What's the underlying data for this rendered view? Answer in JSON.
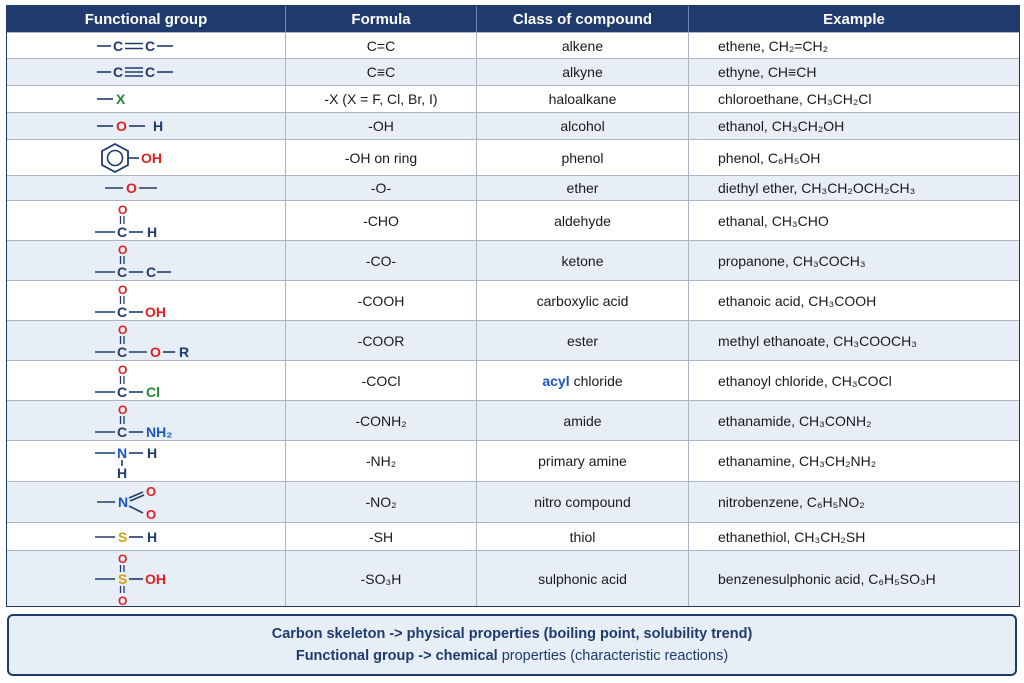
{
  "headers": {
    "group": "Functional group",
    "formula": "Formula",
    "class": "Class of compound",
    "example": "Example"
  },
  "colors": {
    "header_bg": "#1f3b6e",
    "carbon": "#1f3b6e",
    "oxygen": "#e02020",
    "halogen": "#1f8a3a",
    "nitrogen_blue": "#1a56c4",
    "sulfur": "#d4a017"
  },
  "rows": [
    {
      "group_icon": "alkene-structure",
      "atoms": [
        "C",
        "C"
      ],
      "formula": "C=C",
      "class": "alkene",
      "example": "ethene, CH₂=CH₂"
    },
    {
      "group_icon": "alkyne-structure",
      "atoms": [
        "C",
        "C"
      ],
      "formula": "C≡C",
      "class": "alkyne",
      "example": "ethyne, CH≡CH"
    },
    {
      "group_icon": "halide-structure",
      "atoms": [
        "X"
      ],
      "formula": "-X  (X = F, Cl, Br, I)",
      "class": "haloalkane",
      "example": "chloroethane, CH₃CH₂Cl"
    },
    {
      "group_icon": "hydroxyl-structure",
      "atoms": [
        "O",
        "H"
      ],
      "formula": "-OH",
      "class": "alcohol",
      "example": "ethanol, CH₃CH₂OH"
    },
    {
      "group_icon": "phenol-ring-structure",
      "atoms": [
        "OH"
      ],
      "formula": "-OH on ring",
      "class": "phenol",
      "example": "phenol, C₆H₅OH"
    },
    {
      "group_icon": "ether-structure",
      "atoms": [
        "O"
      ],
      "formula": "-O-",
      "class": "ether",
      "example": "diethyl ether, CH₃CH₂OCH₂CH₃"
    },
    {
      "group_icon": "aldehyde-structure",
      "atoms": [
        "O",
        "C",
        "H"
      ],
      "formula": "-CHO",
      "class": "aldehyde",
      "example": "ethanal, CH₃CHO"
    },
    {
      "group_icon": "ketone-structure",
      "atoms": [
        "O",
        "C",
        "C"
      ],
      "formula": "-CO-",
      "class": "ketone",
      "example": "propanone, CH₃COCH₃"
    },
    {
      "group_icon": "carboxyl-structure",
      "atoms": [
        "O",
        "C",
        "OH"
      ],
      "formula": "-COOH",
      "class": "carboxylic acid",
      "example": "ethanoic acid, CH₃COOH"
    },
    {
      "group_icon": "ester-structure",
      "atoms": [
        "O",
        "C",
        "O",
        "R"
      ],
      "formula": "-COOR",
      "class": "ester",
      "example": "methyl ethanoate, CH₃COOCH₃"
    },
    {
      "group_icon": "acyl-chloride-structure",
      "atoms": [
        "O",
        "C",
        "Cl"
      ],
      "formula": "-COCl",
      "class_prefix": "acyl",
      "class": "chloride",
      "example": "ethanoyl chloride, CH₃COCl"
    },
    {
      "group_icon": "amide-structure",
      "atoms": [
        "O",
        "C",
        "NH₂"
      ],
      "formula": "-CONH₂",
      "class": "amide",
      "example": "ethanamide, CH₃CONH₂"
    },
    {
      "group_icon": "amine-structure",
      "atoms": [
        "N",
        "H",
        "H"
      ],
      "formula": "-NH₂",
      "class": "primary amine",
      "example": "ethanamine, CH₃CH₂NH₂"
    },
    {
      "group_icon": "nitro-structure",
      "atoms": [
        "N",
        "O",
        "O"
      ],
      "formula": "-NO₂",
      "class": "nitro compound",
      "example": "nitrobenzene, C₆H₅NO₂"
    },
    {
      "group_icon": "thiol-structure",
      "atoms": [
        "S",
        "H"
      ],
      "formula": "-SH",
      "class": "thiol",
      "example": "ethanethiol, CH₃CH₂SH"
    },
    {
      "group_icon": "sulphonic-acid-structure",
      "atoms": [
        "O",
        "S",
        "OH",
        "O"
      ],
      "formula": "-SO₃H",
      "class": "sulphonic acid",
      "example": "benzenesulphonic acid, C₆H₅SO₃H"
    }
  ],
  "summary": {
    "line1": "Carbon skeleton -> physical properties (boiling point, solubility trend)",
    "line2_bold": "Functional group -> chemical",
    "line2_rest": " properties (characteristic reactions)"
  }
}
